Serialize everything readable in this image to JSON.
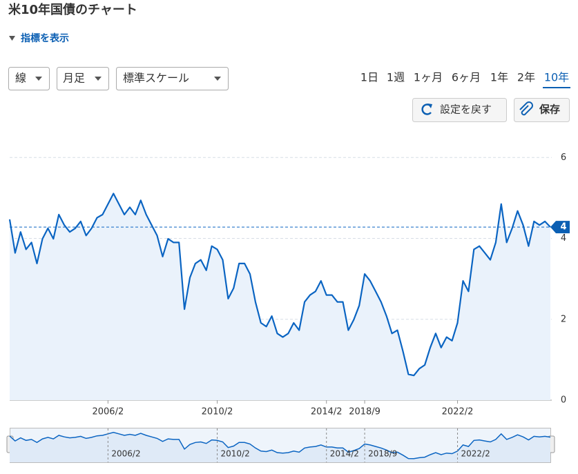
{
  "title": "米10年国債のチャート",
  "indicator_toggle": "指標を表示",
  "dropdowns": [
    "線",
    "月足",
    "標準スケール"
  ],
  "ranges": [
    "1日",
    "1週",
    "1ヶ月",
    "6ヶ月",
    "1年",
    "2年",
    "10年"
  ],
  "selected_range": 6,
  "buttons": [
    "設定を戻す",
    "保存"
  ],
  "chart_data": {
    "type": "line",
    "color": "#0a64c2",
    "area_color": "#eaf2fb",
    "grid": true,
    "ylim": [
      0,
      6.5
    ],
    "yticks": [
      0,
      2,
      4,
      6
    ],
    "current": {
      "value": 4.28,
      "label": "4"
    },
    "categories": [
      null,
      null,
      null,
      null,
      null,
      null,
      null,
      null,
      null,
      null,
      null,
      null,
      null,
      null,
      null,
      null,
      null,
      null,
      "2006/2",
      null,
      null,
      null,
      null,
      null,
      null,
      null,
      null,
      null,
      null,
      null,
      null,
      null,
      null,
      null,
      null,
      null,
      null,
      null,
      "2010/2",
      null,
      null,
      null,
      null,
      null,
      null,
      null,
      null,
      null,
      null,
      null,
      null,
      null,
      null,
      null,
      null,
      null,
      null,
      null,
      "2014/2",
      null,
      null,
      null,
      null,
      null,
      null,
      "2018/9",
      null,
      null,
      null,
      null,
      null,
      null,
      null,
      null,
      null,
      null,
      null,
      null,
      null,
      null,
      null,
      null,
      "2022/2",
      null,
      null,
      null,
      null,
      null,
      null,
      null,
      null,
      null,
      null,
      null,
      null,
      null,
      null,
      null,
      null,
      null
    ],
    "values": [
      4.47,
      3.64,
      4.16,
      3.73,
      3.9,
      3.38,
      3.99,
      4.25,
      3.99,
      4.59,
      4.33,
      4.16,
      4.25,
      4.42,
      4.07,
      4.25,
      4.51,
      4.59,
      4.85,
      5.11,
      4.85,
      4.59,
      4.77,
      4.59,
      4.94,
      4.59,
      4.33,
      4.07,
      3.55,
      3.99,
      3.9,
      3.9,
      2.25,
      3.03,
      3.38,
      3.47,
      3.21,
      3.81,
      3.73,
      3.47,
      2.51,
      2.77,
      3.38,
      3.38,
      3.12,
      2.43,
      1.91,
      1.82,
      2.08,
      1.65,
      1.56,
      1.65,
      1.91,
      1.73,
      2.43,
      2.6,
      2.69,
      2.95,
      2.6,
      2.6,
      2.43,
      2.43,
      1.73,
      1.99,
      2.34,
      3.12,
      2.95,
      2.69,
      2.43,
      2.08,
      1.65,
      1.73,
      1.21,
      0.64,
      0.61,
      0.78,
      0.87,
      1.3,
      1.65,
      1.3,
      1.56,
      1.47,
      1.91,
      2.95,
      2.69,
      3.73,
      3.81,
      3.64,
      3.47,
      3.9,
      4.85,
      3.9,
      4.25,
      4.68,
      4.33,
      3.81,
      4.42,
      4.33,
      4.42,
      4.28
    ]
  }
}
